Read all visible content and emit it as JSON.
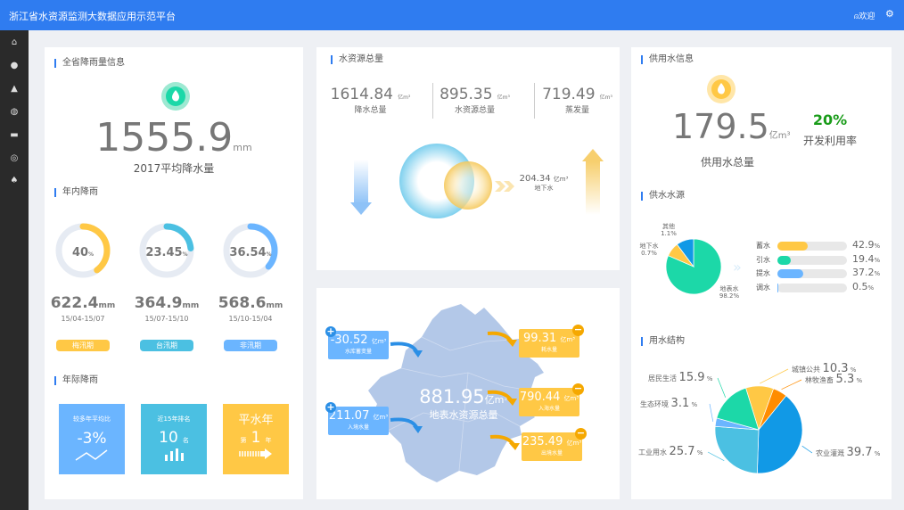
{
  "header": {
    "title": "浙江省水资源监测大数据应用示范平台",
    "welcome": "欢迎",
    "user_icon": "user-icon",
    "settings_icon": "gear-icon",
    "color": "#2f7cf0"
  },
  "sidebar": {
    "items": [
      "home-icon",
      "water-drop-icon",
      "lab-flask-icon",
      "globe-icon",
      "factory-icon",
      "gauge-icon",
      "ship-icon"
    ]
  },
  "rainfall": {
    "title": "全省降雨量信息",
    "value": "1555.9",
    "unit": "mm",
    "label": "2017平均降水量",
    "intra_title": "年内降雨",
    "periods": [
      {
        "percent": 40,
        "pct_text": "40",
        "value": "622.4",
        "unit": "mm",
        "range": "15/04-15/07",
        "name": "梅汛期",
        "color": "#ffc845"
      },
      {
        "percent": 23.45,
        "pct_text": "23.45",
        "value": "364.9",
        "unit": "mm",
        "range": "15/07-15/10",
        "name": "台汛期",
        "color": "#4bc0e2"
      },
      {
        "percent": 36.54,
        "pct_text": "36.54",
        "value": "568.6",
        "unit": "mm",
        "range": "15/10-15/04",
        "name": "非汛期",
        "color": "#6bb5ff"
      }
    ],
    "inter_title": "年际降雨",
    "tiles": [
      {
        "label": "较多年平均比",
        "value": "-3%",
        "color": "#6bb5ff"
      },
      {
        "label": "近15年排名",
        "value": "10",
        "suffix": "名",
        "color": "#4bc0e2"
      },
      {
        "label": "平水年",
        "prefix": "第",
        "value": "1",
        "suffix": "年",
        "color": "#ffc845"
      }
    ]
  },
  "resources": {
    "title": "水资源总量",
    "stats": [
      {
        "value": "1614.84",
        "unit": "亿m³",
        "label": "降水总量"
      },
      {
        "value": "895.35",
        "unit": "亿m³",
        "label": "水资源总量"
      },
      {
        "value": "719.49",
        "unit": "亿m³",
        "label": "蒸发量"
      }
    ],
    "groundwater": {
      "value": "204.34",
      "unit": "亿m³",
      "label": "地下水"
    }
  },
  "map": {
    "center": {
      "value": "881.95",
      "unit": "亿m³",
      "label": "地表水资源总量"
    },
    "inflows": [
      {
        "value": "-30.52",
        "unit": "亿m³",
        "label": "水库蓄变量"
      },
      {
        "value": "211.07",
        "unit": "亿m³",
        "label": "入境水量"
      }
    ],
    "outflows": [
      {
        "value": "99.31",
        "unit": "亿m³",
        "label": "耗水量"
      },
      {
        "value": "790.44",
        "unit": "亿m³",
        "label": "入海水量"
      },
      {
        "value": "235.49",
        "unit": "亿m³",
        "label": "出境水量"
      }
    ]
  },
  "supply": {
    "title": "供用水信息",
    "value": "179.5",
    "unit": "亿m³",
    "label": "供用水总量",
    "rate": "20%",
    "rate_label": "开发利用率",
    "rate_color": "#1a9c1a",
    "source_title": "供水水源",
    "sources": [
      {
        "name": "地表水",
        "pct": "98.2%",
        "value": 88,
        "color": "#1cd8a8"
      },
      {
        "name": "地下水",
        "pct": "0.7%",
        "value": 9,
        "color": "#ffc845"
      },
      {
        "name": "其他",
        "pct": "1.1%",
        "value": 11,
        "color": "#1199e6"
      }
    ],
    "bars": [
      {
        "name": "蓄水",
        "value": 42.9,
        "text": "42.9",
        "color": "#ffc845"
      },
      {
        "name": "引水",
        "value": 19.4,
        "text": "19.4",
        "color": "#1cd8a8"
      },
      {
        "name": "提水",
        "value": 37.2,
        "text": "37.2",
        "color": "#6bb5ff"
      },
      {
        "name": "调水",
        "value": 0.5,
        "text": "0.5",
        "color": "#6bb5ff"
      }
    ],
    "pct_sign": "%",
    "use_title": "用水结构",
    "uses": [
      {
        "name": "城镇公共",
        "value": 10.3,
        "color": "#ffc845"
      },
      {
        "name": "林牧渔畜",
        "value": 5.3,
        "color": "#ff8c00"
      },
      {
        "name": "农业灌溉",
        "value": 39.7,
        "color": "#1199e6"
      },
      {
        "name": "工业用水",
        "value": 25.7,
        "color": "#4bc0e2"
      },
      {
        "name": "生态环境",
        "value": 3.1,
        "color": "#6bb5ff"
      },
      {
        "name": "居民生活",
        "value": 15.9,
        "color": "#1cd8a8"
      }
    ]
  }
}
